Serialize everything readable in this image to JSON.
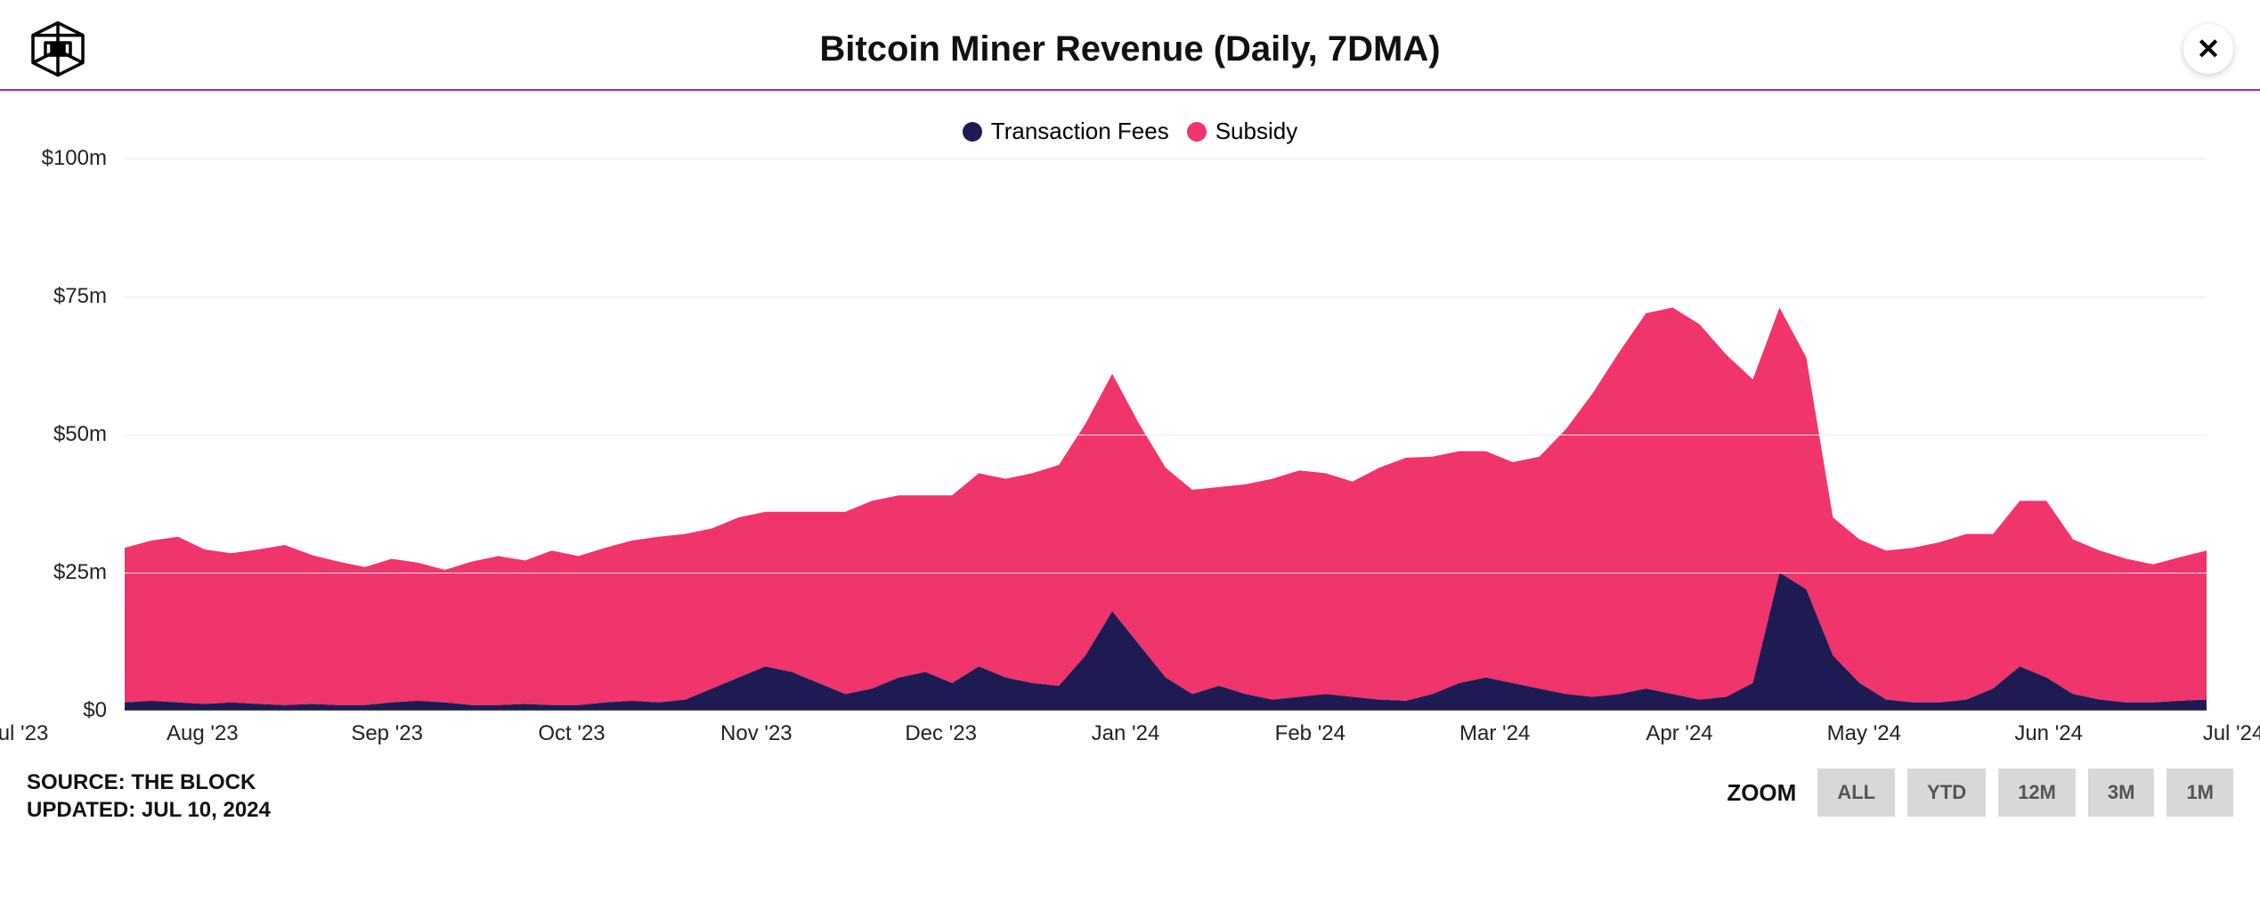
{
  "header": {
    "title": "Bitcoin Miner Revenue (Daily, 7DMA)"
  },
  "legend": [
    {
      "label": "Transaction Fees",
      "color": "#1e1b52"
    },
    {
      "label": "Subsidy",
      "color": "#f0346c"
    }
  ],
  "chart": {
    "type": "stacked-area",
    "background_color": "#ffffff",
    "grid_color": "#eeeeee",
    "accent_line_color": "#a020f0",
    "ylim": [
      0,
      100
    ],
    "y_unit_prefix": "$",
    "y_unit_suffix": "m",
    "yticks": [
      0,
      25,
      50,
      75,
      100
    ],
    "x_labels": [
      "Jul '23",
      "Aug '23",
      "Sep '23",
      "Oct '23",
      "Nov '23",
      "Dec '23",
      "Jan '24",
      "Feb '24",
      "Mar '24",
      "Apr '24",
      "May '24",
      "Jun '24",
      "Jul '24"
    ],
    "title_fontsize": 40,
    "axis_fontsize": 24,
    "legend_fontsize": 26,
    "series": [
      {
        "name": "Transaction Fees",
        "color": "#1e1b52",
        "data": [
          1.5,
          1.8,
          1.5,
          1.2,
          1.5,
          1.2,
          1.0,
          1.2,
          1.0,
          1.0,
          1.5,
          1.8,
          1.5,
          1.0,
          1.0,
          1.2,
          1.0,
          1.0,
          1.5,
          1.8,
          1.5,
          2.0,
          4.0,
          6.0,
          8.0,
          7.0,
          5.0,
          3.0,
          4.0,
          6.0,
          7.0,
          5.0,
          8.0,
          6.0,
          5.0,
          4.5,
          10.0,
          18.0,
          12.0,
          6.0,
          3.0,
          4.5,
          3.0,
          2.0,
          2.5,
          3.0,
          2.5,
          2.0,
          1.8,
          3.0,
          5.0,
          6.0,
          5.0,
          4.0,
          3.0,
          2.5,
          3.0,
          4.0,
          3.0,
          2.0,
          2.5,
          5.0,
          25.0,
          22.0,
          10.0,
          5.0,
          2.0,
          1.5,
          1.5,
          2.0,
          4.0,
          8.0,
          6.0,
          3.0,
          2.0,
          1.5,
          1.5,
          1.8,
          2.0
        ]
      },
      {
        "name": "Subsidy",
        "color": "#f0346c",
        "data": [
          28,
          29,
          30,
          28,
          27,
          28,
          29,
          27,
          26,
          25,
          26,
          25,
          24,
          26,
          27,
          26,
          28,
          27,
          28,
          29,
          30,
          30,
          29,
          29,
          28,
          29,
          31,
          33,
          34,
          33,
          32,
          34,
          35,
          36,
          38,
          40,
          42,
          43,
          40,
          38,
          37,
          36,
          38,
          40,
          41,
          40,
          39,
          42,
          44,
          43,
          42,
          41,
          40,
          42,
          48,
          55,
          62,
          68,
          70,
          68,
          62,
          55,
          48,
          42,
          25,
          26,
          27,
          28,
          29,
          30,
          28,
          30,
          32,
          28,
          27,
          26,
          25,
          26,
          27
        ]
      }
    ]
  },
  "footer": {
    "source_line1": "SOURCE: THE BLOCK",
    "source_line2": "UPDATED: JUL 10, 2024",
    "zoom_label": "ZOOM",
    "zoom_buttons": [
      "ALL",
      "YTD",
      "12M",
      "3M",
      "1M"
    ]
  }
}
